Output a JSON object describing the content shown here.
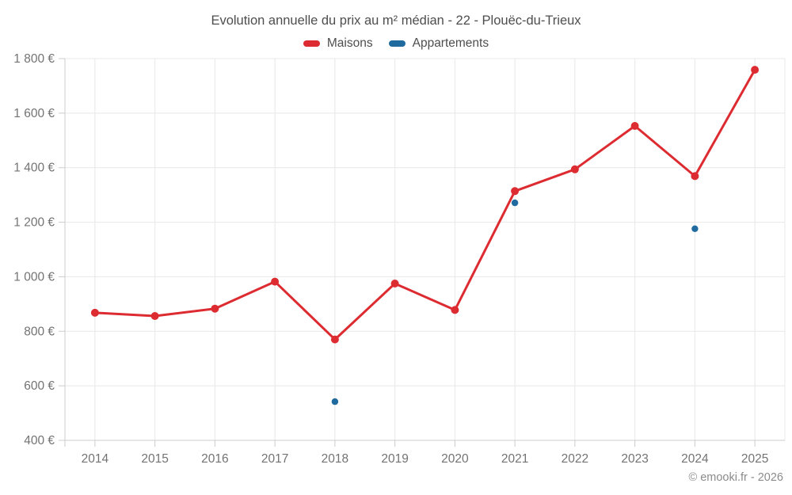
{
  "title": "Evolution annuelle du prix au m² médian - 22 - Plouëc-du-Trieux",
  "copyright": "© emooki.fr - 2026",
  "chart_data": {
    "type": "line",
    "title": "Evolution annuelle du prix au m² médian - 22 - Plouëc-du-Trieux",
    "categories": [
      "2014",
      "2015",
      "2016",
      "2017",
      "2018",
      "2019",
      "2020",
      "2021",
      "2022",
      "2023",
      "2024",
      "2025"
    ],
    "series": [
      {
        "name": "Maisons",
        "color": "#dd2c31",
        "values": [
          868,
          856,
          883,
          982,
          770,
          975,
          878,
          1314,
          1394,
          1553,
          1369,
          1759
        ]
      },
      {
        "name": "Appartements",
        "color": "#1f6a9e",
        "values": [
          null,
          null,
          null,
          null,
          542,
          null,
          null,
          1271,
          null,
          null,
          1176,
          null
        ]
      }
    ],
    "ylim": [
      400,
      1800
    ],
    "ytick_step": 200,
    "ytick_suffix": " €",
    "grid": true,
    "legend_position": "top",
    "colors": {
      "gridline": "#e8e8e8",
      "axis": "#cccccc",
      "tick_label": "#737373",
      "title_text": "#4e4e4e",
      "copyright_text": "#8b8b8b"
    }
  }
}
